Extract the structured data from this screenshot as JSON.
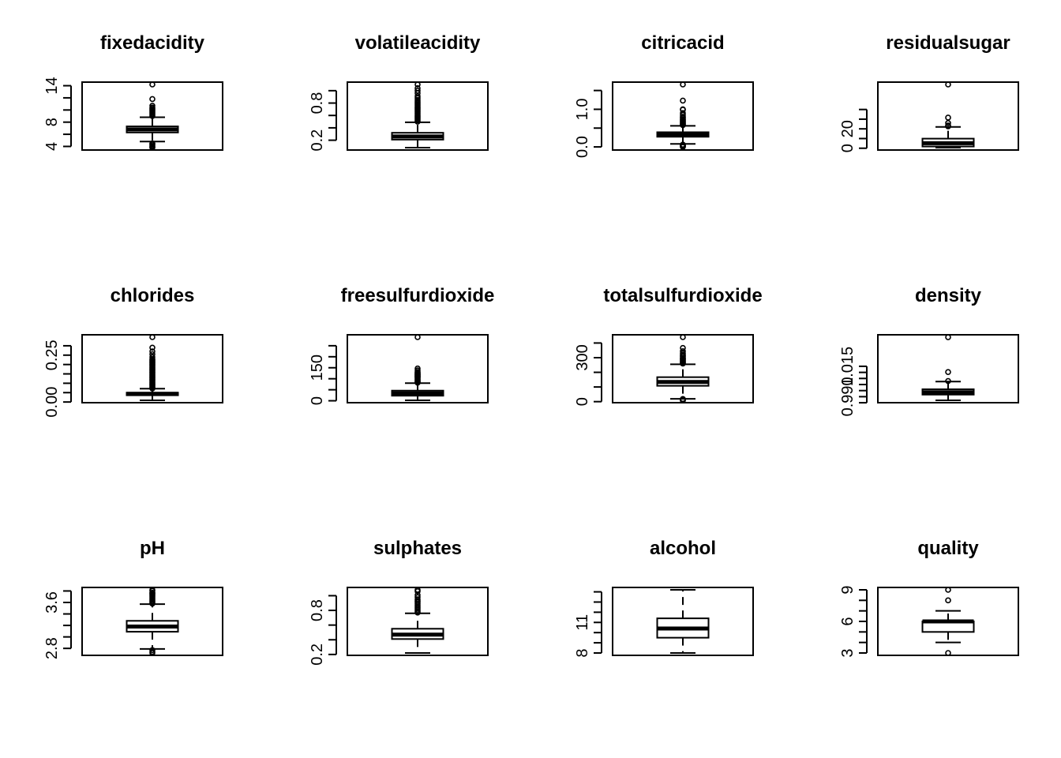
{
  "chart_data": [
    {
      "type": "box",
      "title": "fixedacidity",
      "ylim": [
        3.8,
        14.2
      ],
      "ticks": [
        4,
        6,
        8,
        10,
        12,
        14
      ],
      "tick_labels": [
        "4",
        "",
        "8",
        "",
        "",
        "14"
      ],
      "whisker_low": 4.8,
      "q1": 6.3,
      "median": 6.8,
      "q3": 7.3,
      "whisker_high": 8.8,
      "outliers": [
        3.8,
        3.9,
        4.0,
        4.2,
        4.4,
        4.5,
        9.0,
        9.2,
        9.4,
        9.6,
        9.8,
        10.0,
        10.2,
        10.4,
        10.7,
        11.8,
        14.2
      ]
    },
    {
      "type": "box",
      "title": "volatileacidity",
      "ylim": [
        0.08,
        1.1
      ],
      "ticks": [
        0.2,
        0.4,
        0.6,
        0.8,
        1.0
      ],
      "tick_labels": [
        "0.2",
        "",
        "",
        "0.8",
        ""
      ],
      "whisker_low": 0.08,
      "q1": 0.21,
      "median": 0.26,
      "q3": 0.32,
      "whisker_high": 0.49,
      "outliers": [
        0.5,
        0.52,
        0.54,
        0.56,
        0.58,
        0.6,
        0.62,
        0.64,
        0.66,
        0.68,
        0.7,
        0.72,
        0.74,
        0.76,
        0.78,
        0.8,
        0.82,
        0.85,
        0.88,
        0.91,
        0.96,
        1.0,
        1.04,
        1.1
      ]
    },
    {
      "type": "box",
      "title": "citricacid",
      "ylim": [
        -0.02,
        1.66
      ],
      "ticks": [
        0.0,
        0.5,
        1.0,
        1.5
      ],
      "tick_labels": [
        "0.0",
        "",
        "1.0",
        ""
      ],
      "whisker_low": 0.08,
      "q1": 0.27,
      "median": 0.32,
      "q3": 0.39,
      "whisker_high": 0.56,
      "outliers": [
        0.0,
        0.01,
        0.02,
        0.03,
        0.04,
        0.06,
        0.58,
        0.6,
        0.62,
        0.64,
        0.66,
        0.68,
        0.7,
        0.72,
        0.74,
        0.78,
        0.8,
        0.85,
        0.9,
        0.99,
        1.0,
        1.23,
        1.66
      ]
    },
    {
      "type": "box",
      "title": "residualsugar",
      "ylim": [
        0.6,
        65.8
      ],
      "ticks": [
        0,
        10,
        20,
        30,
        40
      ],
      "tick_labels": [
        "0",
        "",
        "20",
        "",
        ""
      ],
      "whisker_low": 0.6,
      "q1": 1.8,
      "median": 5.2,
      "q3": 9.9,
      "whisker_high": 22.0,
      "outliers": [
        22.6,
        23.5,
        26.05,
        31.6,
        65.8
      ]
    },
    {
      "type": "box",
      "title": "chlorides",
      "ylim": [
        0.009,
        0.346
      ],
      "ticks": [
        0.0,
        0.05,
        0.1,
        0.15,
        0.2,
        0.25,
        0.3
      ],
      "tick_labels": [
        "0.00",
        "",
        "",
        "",
        "",
        "0.25",
        ""
      ],
      "whisker_low": 0.009,
      "q1": 0.036,
      "median": 0.043,
      "q3": 0.05,
      "whisker_high": 0.071,
      "outliers": [
        0.072,
        0.076,
        0.08,
        0.085,
        0.09,
        0.095,
        0.1,
        0.105,
        0.11,
        0.115,
        0.12,
        0.125,
        0.13,
        0.135,
        0.14,
        0.145,
        0.15,
        0.155,
        0.16,
        0.165,
        0.17,
        0.175,
        0.18,
        0.185,
        0.19,
        0.195,
        0.2,
        0.205,
        0.21,
        0.215,
        0.22,
        0.225,
        0.23,
        0.24,
        0.255,
        0.27,
        0.29,
        0.346
      ]
    },
    {
      "type": "box",
      "title": "freesulfurdioxide",
      "ylim": [
        2,
        289
      ],
      "ticks": [
        0,
        50,
        100,
        150,
        200,
        250
      ],
      "tick_labels": [
        "0",
        "",
        "",
        "150",
        "",
        ""
      ],
      "whisker_low": 2,
      "q1": 23,
      "median": 34,
      "q3": 46,
      "whisker_high": 80,
      "outliers": [
        82,
        85,
        88,
        90,
        95,
        98,
        101,
        105,
        108,
        110,
        112,
        115,
        118,
        120,
        122,
        124,
        128,
        131,
        138,
        146.5,
        289
      ]
    },
    {
      "type": "box",
      "title": "totalsulfurdioxide",
      "ylim": [
        9,
        440
      ],
      "ticks": [
        0,
        100,
        200,
        300,
        400
      ],
      "tick_labels": [
        "0",
        "",
        "",
        "300",
        ""
      ],
      "whisker_low": 19,
      "q1": 108,
      "median": 134,
      "q3": 167,
      "whisker_high": 255,
      "outliers": [
        9,
        10,
        18,
        260,
        265,
        270,
        275,
        280,
        285,
        290,
        295,
        300,
        310,
        313,
        320,
        330,
        344,
        366,
        440
      ]
    },
    {
      "type": "box",
      "title": "density",
      "ylim": [
        0.987,
        1.039
      ],
      "ticks": [
        0.985,
        0.99,
        0.995,
        1.0,
        1.005,
        1.01,
        1.015
      ],
      "tick_labels": [
        "",
        "0.990",
        "",
        "",
        "",
        "",
        "1.015"
      ],
      "whisker_low": 0.987,
      "q1": 0.9917,
      "median": 0.9937,
      "q3": 0.9961,
      "whisker_high": 1.0024,
      "outliers": [
        1.0029,
        1.0103,
        1.03898
      ]
    },
    {
      "type": "box",
      "title": "pH",
      "ylim": [
        2.72,
        3.82
      ],
      "ticks": [
        2.8,
        3.0,
        3.2,
        3.4,
        3.6,
        3.8
      ],
      "tick_labels": [
        "2.8",
        "",
        "",
        "",
        "3.6",
        ""
      ],
      "whisker_low": 2.79,
      "q1": 3.09,
      "median": 3.18,
      "q3": 3.28,
      "whisker_high": 3.57,
      "outliers": [
        2.72,
        2.74,
        2.77,
        3.58,
        3.6,
        3.62,
        3.64,
        3.66,
        3.68,
        3.7,
        3.72,
        3.74,
        3.76,
        3.77,
        3.8,
        3.82
      ]
    },
    {
      "type": "box",
      "title": "sulphates",
      "ylim": [
        0.22,
        1.08
      ],
      "ticks": [
        0.2,
        0.4,
        0.6,
        0.8,
        1.0
      ],
      "tick_labels": [
        "0.2",
        "",
        "",
        "0.8",
        ""
      ],
      "whisker_low": 0.22,
      "q1": 0.41,
      "median": 0.47,
      "q3": 0.55,
      "whisker_high": 0.76,
      "outliers": [
        0.77,
        0.79,
        0.81,
        0.83,
        0.85,
        0.87,
        0.89,
        0.91,
        0.93,
        0.95,
        0.98,
        1.01,
        1.06,
        1.08
      ]
    },
    {
      "type": "box",
      "title": "alcohol",
      "ylim": [
        8.0,
        14.2
      ],
      "ticks": [
        8,
        9,
        10,
        11,
        12,
        13,
        14
      ],
      "tick_labels": [
        "8",
        "",
        "",
        "11",
        "",
        "",
        ""
      ],
      "whisker_low": 8.0,
      "q1": 9.5,
      "median": 10.4,
      "q3": 11.4,
      "whisker_high": 14.2,
      "outliers": []
    },
    {
      "type": "box",
      "title": "quality",
      "ylim": [
        3,
        9
      ],
      "ticks": [
        3,
        4,
        5,
        6,
        7,
        8,
        9
      ],
      "tick_labels": [
        "3",
        "",
        "",
        "6",
        "",
        "",
        "9"
      ],
      "whisker_low": 4,
      "q1": 5,
      "median": 6,
      "q3": 6,
      "whisker_high": 7,
      "outliers": [
        3,
        8,
        9
      ]
    }
  ]
}
